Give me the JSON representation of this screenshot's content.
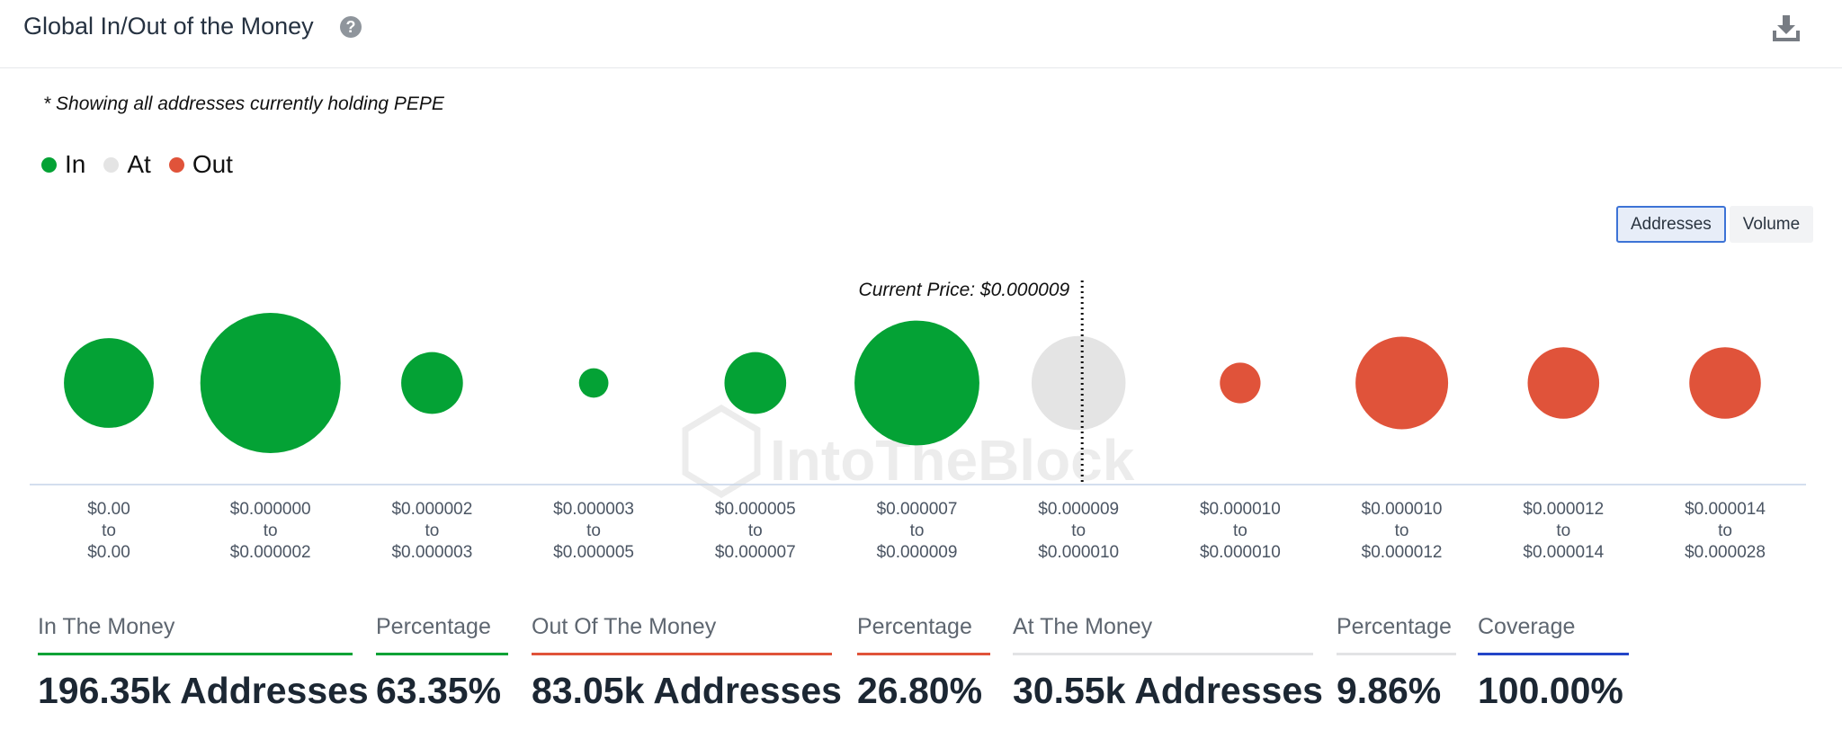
{
  "header": {
    "title": "Global In/Out of the Money",
    "help_icon": "question-circle-icon",
    "download_icon": "download-icon"
  },
  "note": "* Showing all addresses currently holding PEPE",
  "legend": [
    {
      "label": "In",
      "color": "#04a235"
    },
    {
      "label": "At",
      "color": "#e4e4e4"
    },
    {
      "label": "Out",
      "color": "#e0533a"
    }
  ],
  "toggle": {
    "options": [
      "Addresses",
      "Volume"
    ],
    "selected": "Addresses"
  },
  "chart_data": {
    "type": "bubble",
    "current_price_label": "Current Price: $0.000009",
    "current_price_position": "between $0.000007–$0.000009 and $0.000009–$0.000010 ranges, through the At bubble",
    "watermark": "IntoTheBlock",
    "legend_placement": "top-left",
    "grid": false,
    "categories": [
      {
        "from": "$0.00",
        "to": "$0.00"
      },
      {
        "from": "$0.000000",
        "to": "$0.000002"
      },
      {
        "from": "$0.000002",
        "to": "$0.000003"
      },
      {
        "from": "$0.000003",
        "to": "$0.000005"
      },
      {
        "from": "$0.000005",
        "to": "$0.000007"
      },
      {
        "from": "$0.000007",
        "to": "$0.000009"
      },
      {
        "from": "$0.000009",
        "to": "$0.000010"
      },
      {
        "from": "$0.000010",
        "to": "$0.000010"
      },
      {
        "from": "$0.000010",
        "to": "$0.000012"
      },
      {
        "from": "$0.000012",
        "to": "$0.000014"
      },
      {
        "from": "$0.000014",
        "to": "$0.000028"
      }
    ],
    "series": [
      {
        "name": "In",
        "color": "#04a235",
        "indices": [
          0,
          1,
          2,
          3,
          4,
          5
        ]
      },
      {
        "name": "At",
        "color": "#e4e4e4",
        "indices": [
          6
        ]
      },
      {
        "name": "Out",
        "color": "#e0533a",
        "indices": [
          7,
          8,
          9,
          10
        ]
      }
    ],
    "relative_size": [
      0.64,
      1.0,
      0.44,
      0.21,
      0.44,
      0.89,
      0.67,
      0.29,
      0.66,
      0.51,
      0.51
    ]
  },
  "stats": [
    {
      "label": "In The Money",
      "value": "196.35k Addresses",
      "color": "#04a235"
    },
    {
      "label": "Percentage",
      "value": "63.35%",
      "color": "#04a235"
    },
    {
      "label": "Out Of The Money",
      "value": "83.05k Addresses",
      "color": "#e0533a"
    },
    {
      "label": "Percentage",
      "value": "26.80%",
      "color": "#e0533a"
    },
    {
      "label": "At The Money",
      "value": "30.55k Addresses",
      "color": "#e2e3e5"
    },
    {
      "label": "Percentage",
      "value": "9.86%",
      "color": "#e2e3e5"
    },
    {
      "label": "Coverage",
      "value": "100.00%",
      "color": "#2345c8"
    }
  ]
}
